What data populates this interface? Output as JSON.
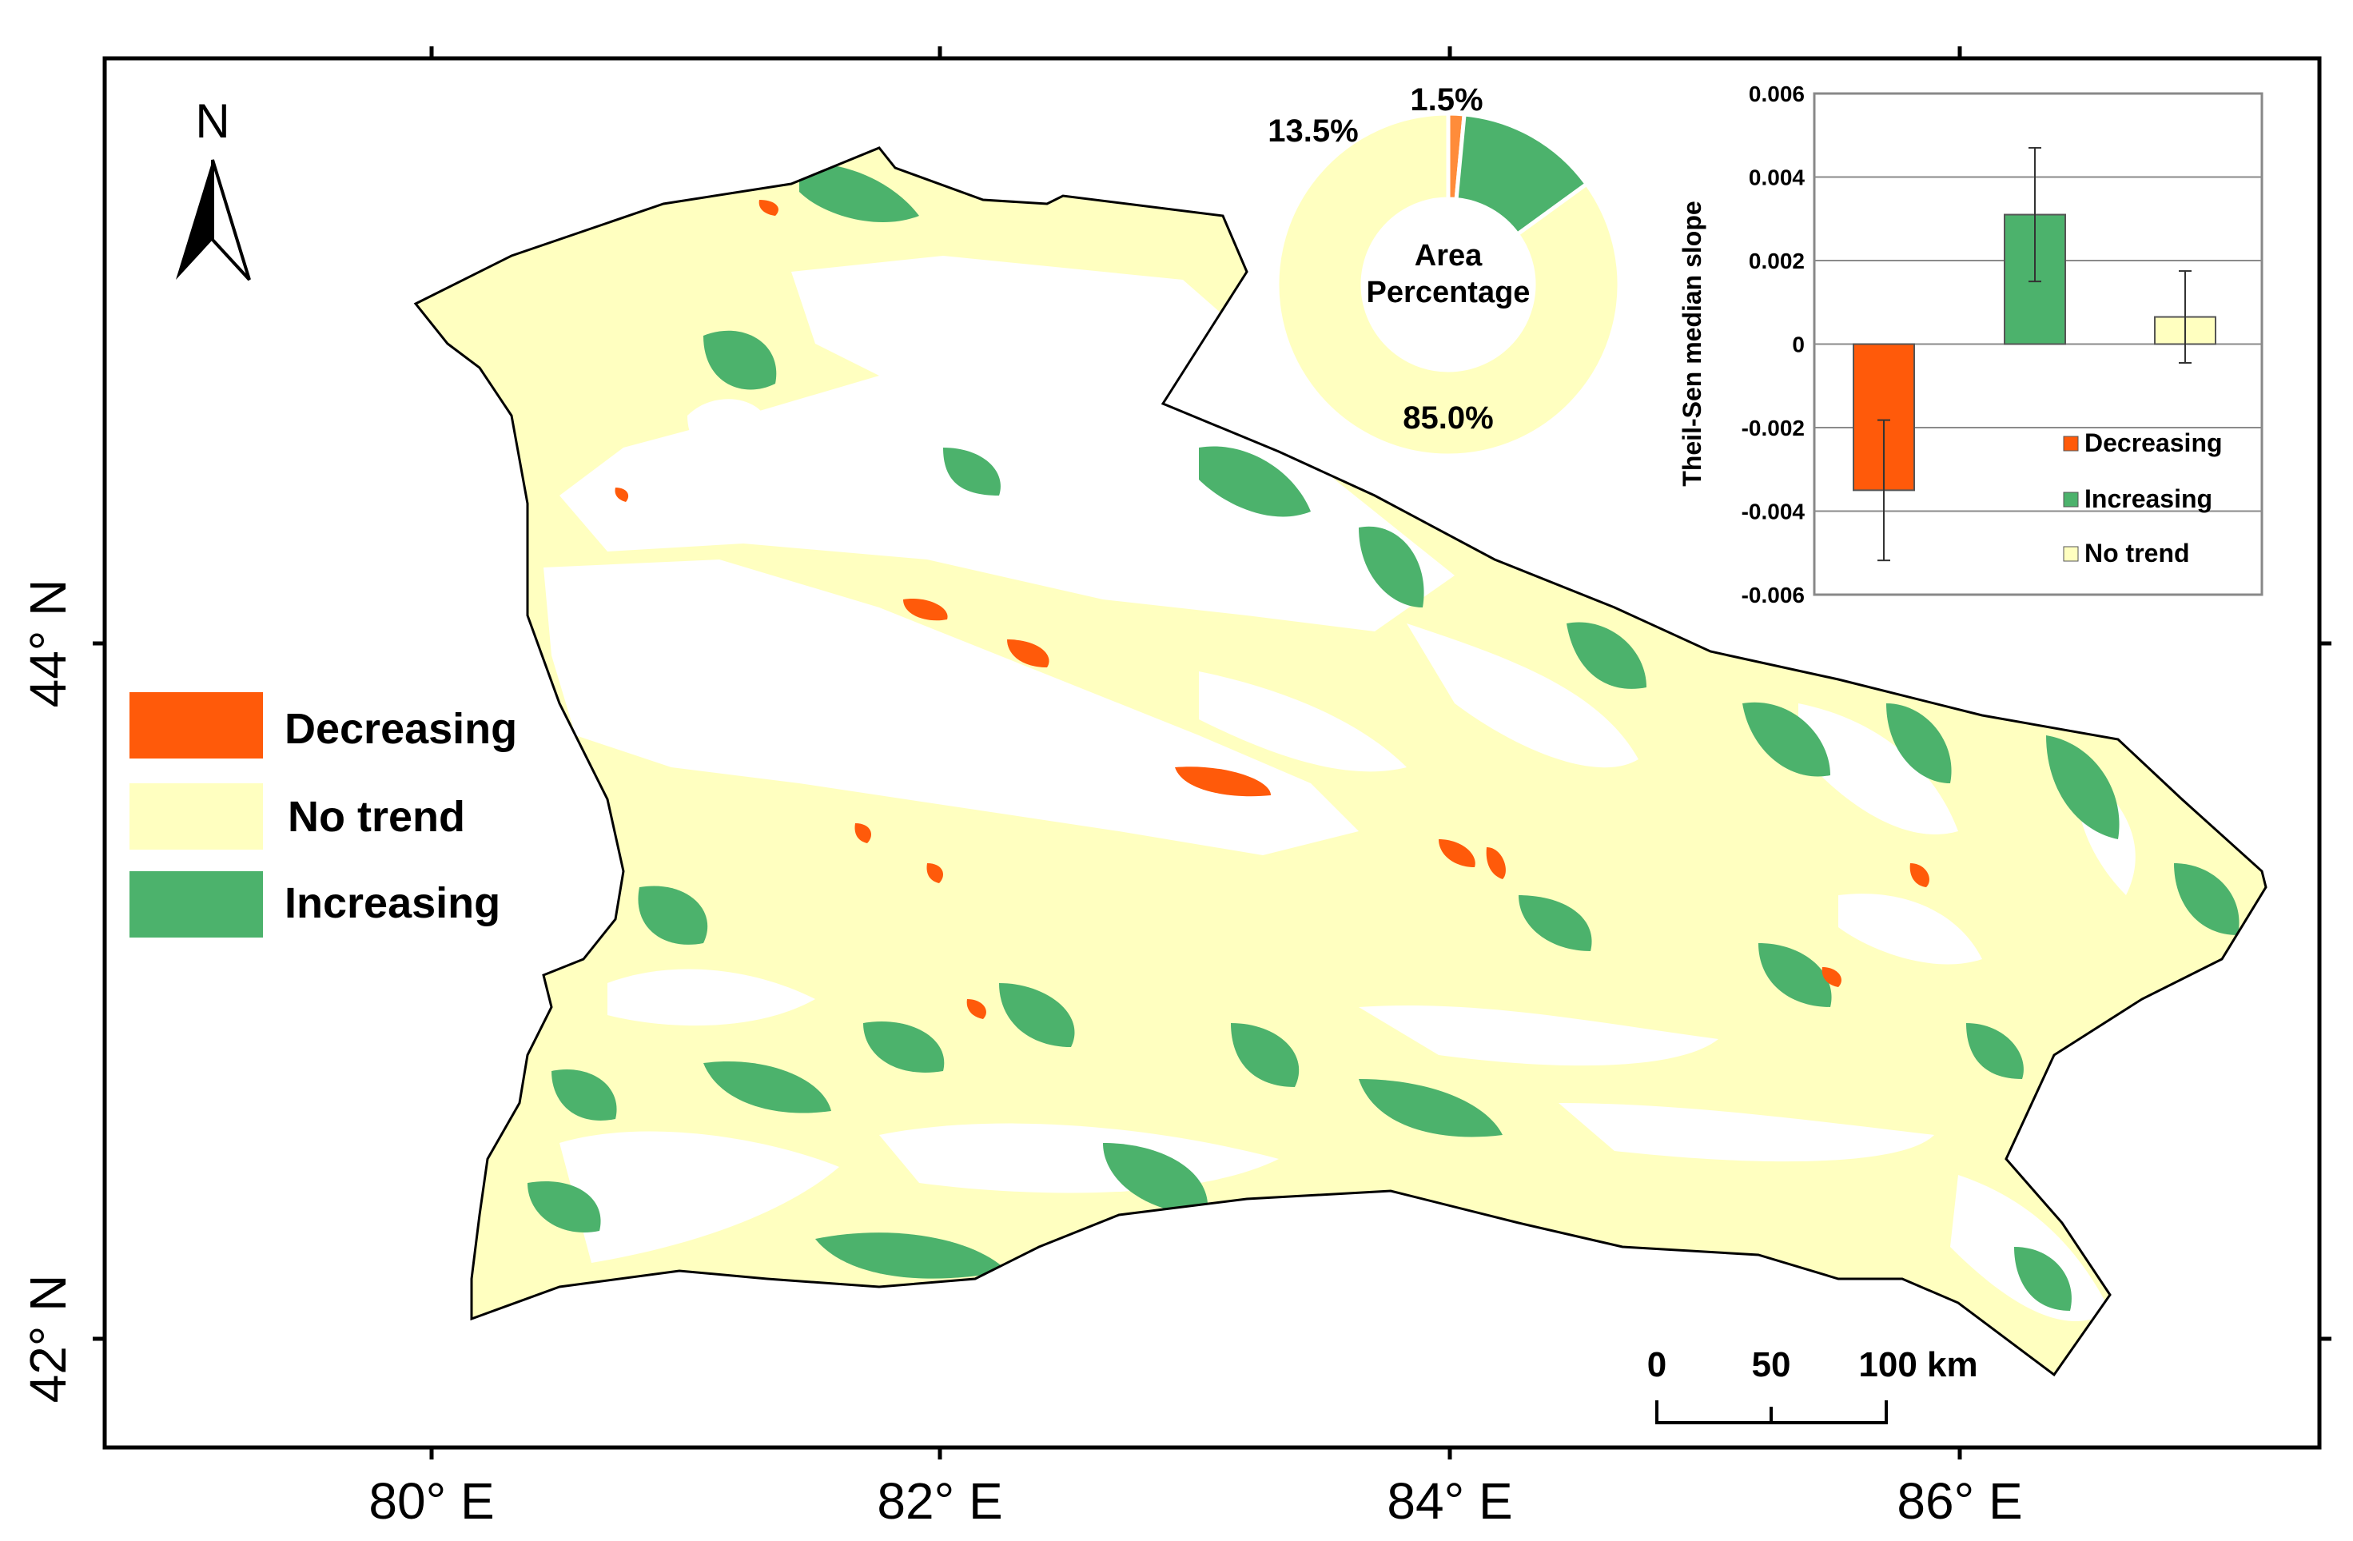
{
  "map": {
    "north_arrow": "N",
    "lon_ticks": [
      "80° E",
      "82° E",
      "84° E",
      "86° E"
    ],
    "lat_ticks": [
      "44° N",
      "42° N"
    ],
    "legend": [
      {
        "label": "Decreasing",
        "color": "#ff5a0a"
      },
      {
        "label": "No trend",
        "color": "#ffffc0"
      },
      {
        "label": "Increasing",
        "color": "#4cb26c"
      }
    ],
    "scale_bar": {
      "labels": [
        "0",
        "50",
        "100 km"
      ]
    }
  },
  "colors": {
    "decreasing": "#ff5a0a",
    "no_trend": "#ffffc0",
    "increasing": "#4cb26c",
    "pie_decreasing": "#ff8c3a"
  },
  "chart_data": [
    {
      "type": "pie",
      "title": "Area Percentage",
      "slices": [
        {
          "label": "Decreasing",
          "value": 1.5,
          "display": "1.5%"
        },
        {
          "label": "Increasing",
          "value": 13.5,
          "display": "13.5%"
        },
        {
          "label": "No trend",
          "value": 85.0,
          "display": "85.0%"
        }
      ]
    },
    {
      "type": "bar",
      "ylabel": "Theil-Sen median slope",
      "categories": [
        "Decreasing",
        "Increasing",
        "No trend"
      ],
      "values": [
        -0.0035,
        0.0031,
        0.00065
      ],
      "errors": [
        0.00168,
        0.0016,
        0.0011
      ],
      "ylim": [
        -0.006,
        0.006
      ],
      "yticks": [
        "0.006",
        "0.004",
        "0.002",
        "0",
        "-0.002",
        "-0.004",
        "-0.006"
      ],
      "ytick_values": [
        0.006,
        0.004,
        0.002,
        0,
        -0.002,
        -0.004,
        -0.006
      ],
      "grid": true,
      "legend_position": "lower-right",
      "legend": [
        "Decreasing",
        "Increasing",
        "No trend"
      ]
    }
  ]
}
